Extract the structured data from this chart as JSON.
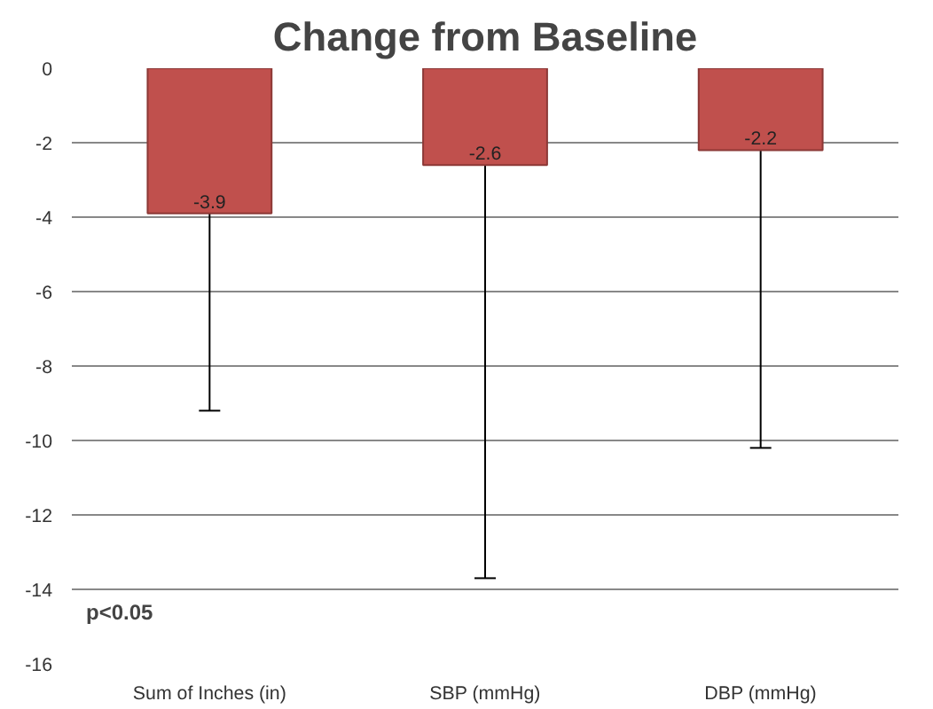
{
  "chart_data": {
    "type": "bar",
    "title": "Change from Baseline",
    "categories": [
      "Sum of Inches (in)",
      "SBP (mmHg)",
      "DBP (mmHg)"
    ],
    "values": [
      -3.9,
      -2.6,
      -2.2
    ],
    "errors": [
      [
        -9.2,
        -3.9
      ],
      [
        -13.7,
        -2.6
      ],
      [
        -10.2,
        -2.2
      ]
    ],
    "color": "#c0504d",
    "ylim": [
      -16,
      0
    ],
    "yticks": [
      -16,
      -14,
      -12,
      -10,
      -8,
      -6,
      -4,
      -2,
      0
    ],
    "grid": "y",
    "data_labels": true,
    "annotations": [
      "p<0.05"
    ]
  }
}
